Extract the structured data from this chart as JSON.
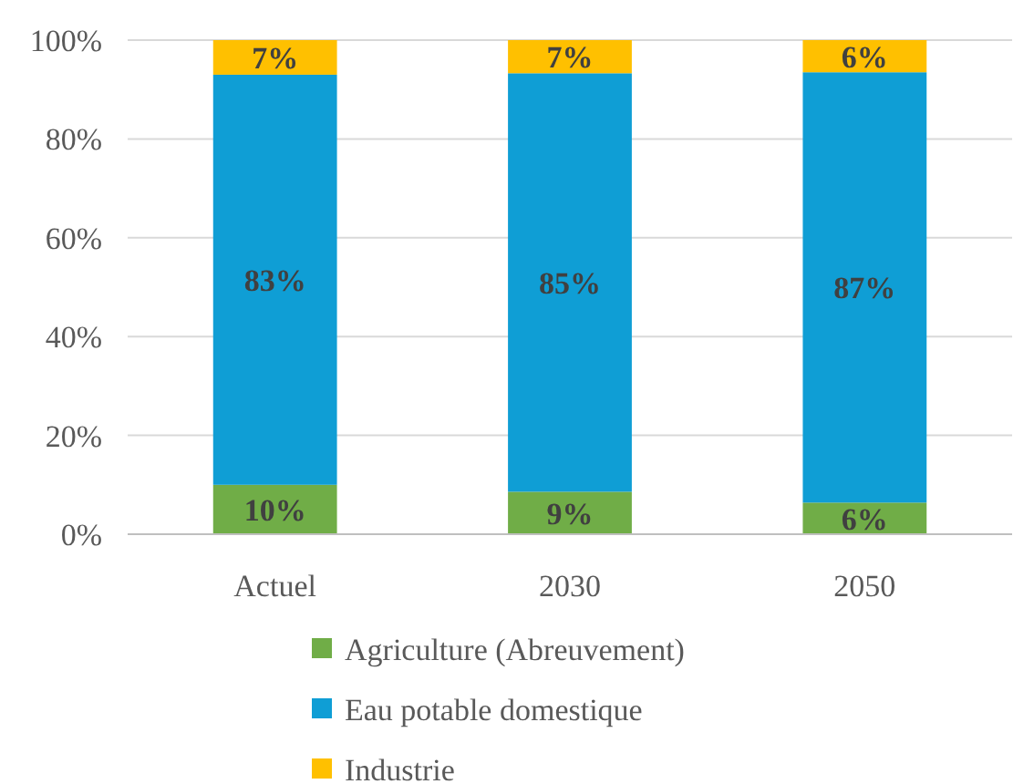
{
  "chart_data": {
    "type": "bar",
    "stacked": true,
    "categories": [
      "Actuel",
      "2030",
      "2050"
    ],
    "series": [
      {
        "name": "Agriculture (Abreuvement)",
        "color": "#70ad47",
        "values": [
          10,
          8.6,
          6.4
        ],
        "value_labels": [
          "10%",
          "9%",
          "6%"
        ]
      },
      {
        "name": "Eau potable domestique",
        "color": "#0f9ed5",
        "values": [
          83,
          84.7,
          87.1
        ],
        "value_labels": [
          "83%",
          "85%",
          "87%"
        ]
      },
      {
        "name": "Industrie",
        "color": "#ffc000",
        "values": [
          7,
          6.7,
          6.5
        ],
        "value_labels": [
          "7%",
          "7%",
          "6%"
        ]
      }
    ],
    "ylim": [
      0,
      100
    ],
    "yticks": [
      {
        "value": 0,
        "label": "0%"
      },
      {
        "value": 20,
        "label": "20%"
      },
      {
        "value": 40,
        "label": "40%"
      },
      {
        "value": 60,
        "label": "60%"
      },
      {
        "value": 80,
        "label": "80%"
      },
      {
        "value": 100,
        "label": "100%"
      }
    ],
    "grid": "y",
    "legend": "bottom"
  }
}
